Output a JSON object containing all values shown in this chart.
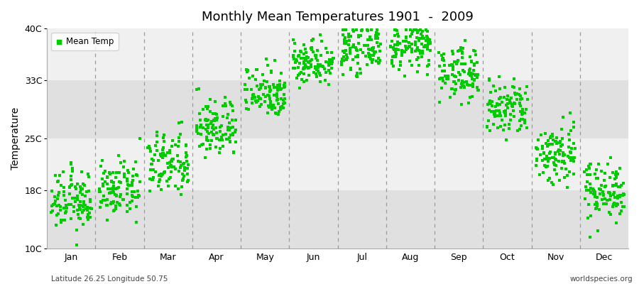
{
  "title": "Monthly Mean Temperatures 1901  -  2009",
  "ylabel": "Temperature",
  "ytick_labels": [
    "10C",
    "18C",
    "25C",
    "33C",
    "40C"
  ],
  "ytick_values": [
    10,
    18,
    25,
    33,
    40
  ],
  "ylim": [
    10,
    40
  ],
  "month_labels": [
    "Jan",
    "Feb",
    "Mar",
    "Apr",
    "May",
    "Jun",
    "Jul",
    "Aug",
    "Sep",
    "Oct",
    "Nov",
    "Dec"
  ],
  "dot_color": "#00cc00",
  "bg_color_light": "#f0f0f0",
  "bg_color_dark": "#e0e0e0",
  "fig_color": "#ffffff",
  "footnote_left": "Latitude 26.25 Longitude 50.75",
  "footnote_right": "worldspecies.org",
  "legend_label": "Mean Temp",
  "mean_temps": [
    16.5,
    18.0,
    21.5,
    26.5,
    31.5,
    35.5,
    37.2,
    37.5,
    34.0,
    29.0,
    23.0,
    18.0
  ],
  "temp_spread": [
    2.0,
    1.8,
    2.2,
    2.0,
    1.8,
    1.5,
    1.5,
    1.5,
    1.8,
    2.0,
    2.2,
    2.0
  ],
  "n_years": 109
}
